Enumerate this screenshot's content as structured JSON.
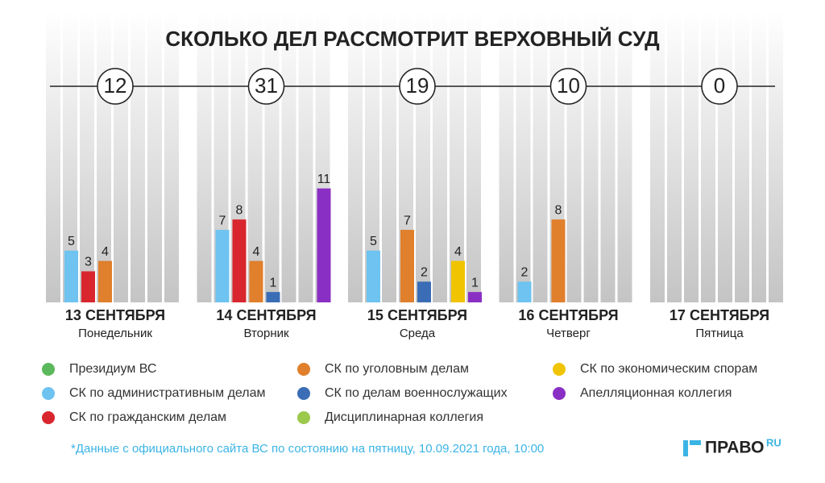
{
  "chart_data": {
    "type": "bar",
    "title": "СКОЛЬКО ДЕЛ РАССМОТРИТ ВЕРХОВНЫЙ СУД",
    "categories": [
      "13 СЕНТЯБРЯ",
      "14 СЕНТЯБРЯ",
      "15 СЕНТЯБРЯ",
      "16 СЕНТЯБРЯ",
      "17 СЕНТЯБРЯ"
    ],
    "weekdays": [
      "Понедельник",
      "Вторник",
      "Среда",
      "Четверг",
      "Пятница"
    ],
    "totals": [
      12,
      31,
      19,
      10,
      0
    ],
    "series": [
      {
        "name": "Президиум ВС",
        "color": "#5cb85c",
        "values": [
          null,
          null,
          null,
          null,
          null
        ]
      },
      {
        "name": "СК по административным делам",
        "color": "#6ec3f0",
        "values": [
          5,
          7,
          5,
          2,
          null
        ]
      },
      {
        "name": "СК по гражданским делам",
        "color": "#d9262e",
        "values": [
          3,
          8,
          null,
          null,
          null
        ]
      },
      {
        "name": "СК по уголовным делам",
        "color": "#e07f2c",
        "values": [
          4,
          4,
          7,
          8,
          null
        ]
      },
      {
        "name": "СК по делам военнослужащих",
        "color": "#3a6db5",
        "values": [
          null,
          1,
          2,
          null,
          null
        ]
      },
      {
        "name": "Дисциплинарная коллегия",
        "color": "#9bc94b",
        "values": [
          null,
          null,
          null,
          null,
          null
        ]
      },
      {
        "name": "СК по экономическим спорам",
        "color": "#f0c400",
        "values": [
          null,
          null,
          4,
          null,
          null
        ]
      },
      {
        "name": "Апелляционная коллегия",
        "color": "#8a2fc4",
        "values": [
          null,
          11,
          1,
          null,
          null
        ]
      }
    ],
    "footnote": "*Данные с официального сайта ВС по состоянию на пятницу, 10.09.2021 года, 10:00",
    "logo": "ПРАВО",
    "logo_suffix": "RU"
  }
}
